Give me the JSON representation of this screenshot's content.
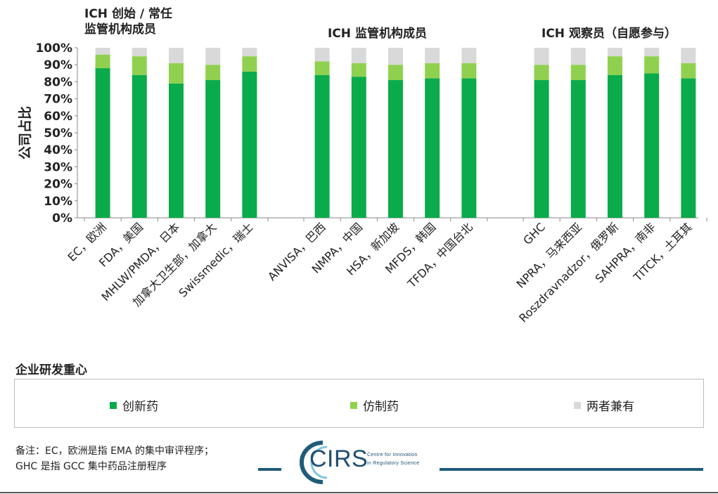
{
  "group_titles": {
    "founding": "ICH 创始 / 常任\n监管机构成员",
    "members": "ICH 监管机构成员",
    "observers": "ICH 观察员（自愿参与）"
  },
  "legend": {
    "title": "企业研发重心",
    "items": [
      {
        "label": "创新药",
        "color": "#0aab4a"
      },
      {
        "label": "仿制药",
        "color": "#8fd14f"
      },
      {
        "label": "两者兼有",
        "color": "#d9d9d9"
      }
    ]
  },
  "note": {
    "line1": "备注：EC，欧洲是指 EMA 的集中审评程序；",
    "line2": "GHC 是指 GCC 集中药品注册程序"
  },
  "logo": {
    "name": "CIRS",
    "sub1": "Centre for Innovation",
    "sub2": "in Regulatory Science"
  },
  "chart_data": {
    "type": "bar",
    "stacked": true,
    "ylabel": "公司占比",
    "ylim": [
      0,
      100
    ],
    "yticks": [
      "0%",
      "10%",
      "20%",
      "30%",
      "40%",
      "50%",
      "60%",
      "70%",
      "80%",
      "90%",
      "100%"
    ],
    "grid": false,
    "categories": [
      "EC，欧洲",
      "FDA，美国",
      "MHLW/PMDA，日本",
      "加拿大卫生部，加拿大",
      "Swissmedic，瑞士",
      "ANVISA，巴西",
      "NMPA，中国",
      "HSA，新加坡",
      "MFDS，韩国",
      "TFDA，中国台北",
      "GHC",
      "NPRA，马来西亚",
      "Roszdravnadzor，俄罗斯",
      "SAHPRA，南非",
      "TITCK，土耳其"
    ],
    "series": [
      {
        "name": "创新药",
        "color": "#0aab4a",
        "values": [
          88,
          84,
          79,
          81,
          86,
          84,
          83,
          81,
          82,
          82,
          81,
          81,
          84,
          85,
          82
        ]
      },
      {
        "name": "仿制药",
        "color": "#8fd14f",
        "values": [
          8,
          11,
          12,
          9,
          9,
          8,
          8,
          9,
          9,
          9,
          9,
          9,
          11,
          10,
          9
        ]
      },
      {
        "name": "两者兼有",
        "color": "#d9d9d9",
        "values": [
          4,
          5,
          9,
          10,
          5,
          8,
          9,
          10,
          9,
          9,
          10,
          10,
          5,
          5,
          9
        ]
      }
    ]
  }
}
